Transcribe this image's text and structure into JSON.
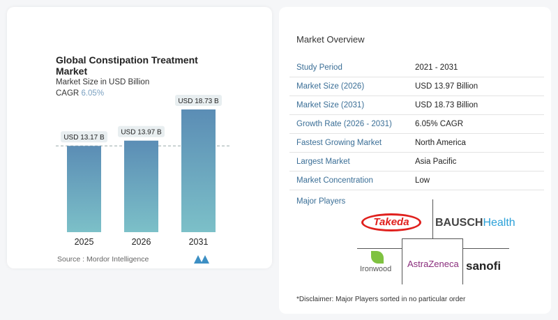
{
  "chart_data": {
    "type": "bar",
    "title": "Global Constipation Treatment Market",
    "subtitle": "Market Size in USD Billion",
    "cagr_label": "CAGR",
    "cagr_value": "6.05%",
    "categories": [
      "2025",
      "2026",
      "2031"
    ],
    "values": [
      13.17,
      13.97,
      18.73
    ],
    "data_labels": [
      "USD 13.17 B",
      "USD 13.97 B",
      "USD 18.73 B"
    ],
    "ylim": [
      0,
      18.73
    ],
    "bar_color_top": "#5b8db5",
    "bar_color_bottom": "#7cc0c8",
    "reference_line_value": 13.17,
    "source": "Source :  Mordor Intelligence"
  },
  "overview": {
    "title": "Market Overview",
    "rows": [
      {
        "label": "Study Period",
        "value": "2021 - 2031"
      },
      {
        "label": "Market Size (2026)",
        "value": "USD 13.97 Billion"
      },
      {
        "label": "Market Size (2031)",
        "value": "USD 18.73 Billion"
      },
      {
        "label": "Growth Rate (2026 - 2031)",
        "value": "6.05% CAGR"
      },
      {
        "label": "Fastest Growing Market",
        "value": "North America"
      },
      {
        "label": "Largest Market",
        "value": "Asia Pacific"
      },
      {
        "label": "Market Concentration",
        "value": "Low"
      }
    ]
  },
  "players": {
    "title": "Major Players",
    "logos": [
      "Takeda",
      "BAUSCH",
      "Health",
      "Ironwood",
      "AstraZeneca",
      "sanofi"
    ]
  },
  "disclaimer": "*Disclaimer: Major Players sorted in no particular order"
}
